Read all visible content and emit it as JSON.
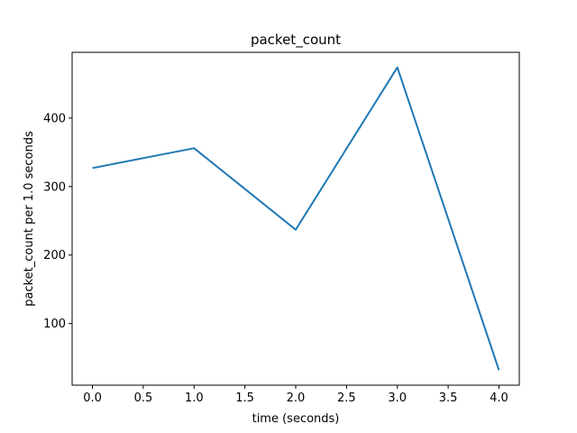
{
  "chart_data": {
    "type": "line",
    "title": "packet_count",
    "xlabel": "time (seconds)",
    "ylabel": "packet_count per 1.0 seconds",
    "x": [
      0,
      1,
      2,
      3,
      4
    ],
    "series": [
      {
        "values": [
          327,
          356,
          237,
          474,
          32
        ]
      }
    ],
    "xlim": [
      -0.2,
      4.2
    ],
    "ylim": [
      10,
      496
    ],
    "xticks": [
      0.0,
      0.5,
      1.0,
      1.5,
      2.0,
      2.5,
      3.0,
      3.5,
      4.0
    ],
    "xtick_labels": [
      "0.0",
      "0.5",
      "1.0",
      "1.5",
      "2.0",
      "2.5",
      "3.0",
      "3.5",
      "4.0"
    ],
    "yticks": [
      100,
      200,
      300,
      400
    ],
    "ytick_labels": [
      "100",
      "200",
      "300",
      "400"
    ],
    "grid": false,
    "legend": "none",
    "line_color": "#1f77b4"
  }
}
